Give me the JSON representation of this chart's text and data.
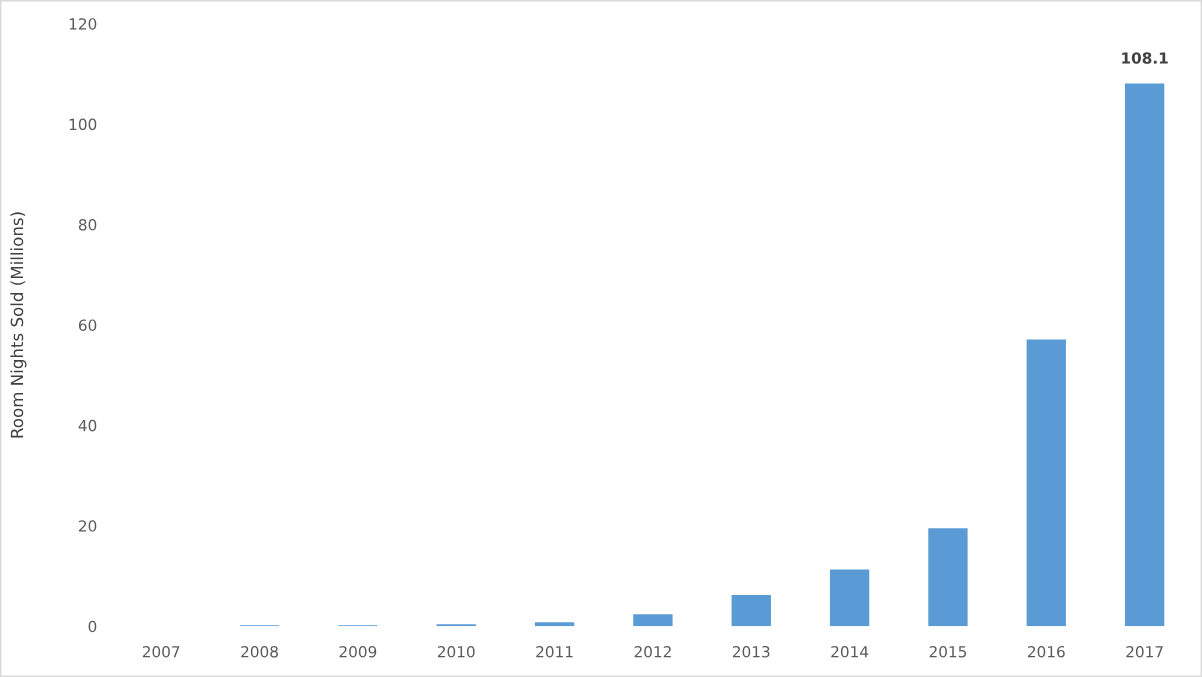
{
  "chart_data": {
    "type": "bar",
    "ylabel": "Room Nights Sold (Millions)",
    "categories": [
      "2007",
      "2008",
      "2009",
      "2010",
      "2011",
      "2012",
      "2013",
      "2014",
      "2015",
      "2016",
      "2017"
    ],
    "values": [
      0,
      0.2,
      0.2,
      0.4,
      0.8,
      2.4,
      6.2,
      11.3,
      19.5,
      57.1,
      108.1
    ],
    "value_labels": [
      null,
      null,
      null,
      null,
      null,
      null,
      null,
      null,
      null,
      null,
      "108.1"
    ],
    "color": "#5b9bd5",
    "ylim": [
      0,
      120
    ],
    "yticks": [
      0,
      20,
      40,
      60,
      80,
      100,
      120
    ],
    "grid": false
  }
}
